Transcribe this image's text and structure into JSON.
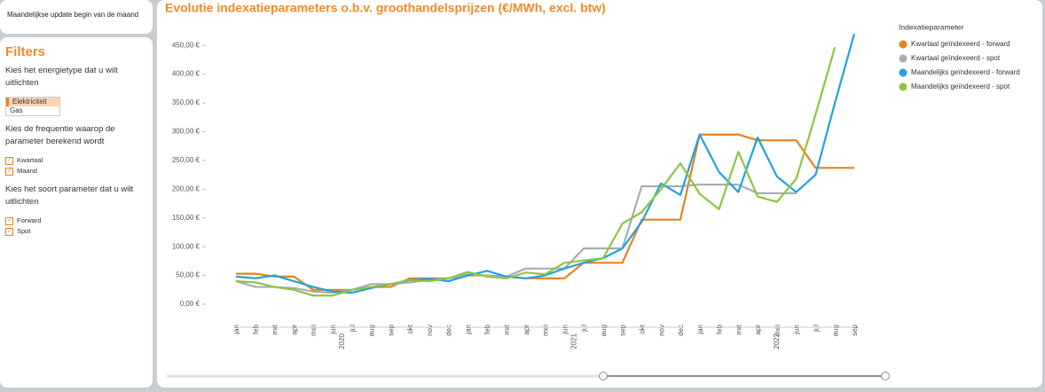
{
  "banner": {
    "text": "Maandelijkse update begin van de maand"
  },
  "filters": {
    "title": "Filters",
    "energy": {
      "question": "Kies het energietype dat u wilt uitlichten",
      "options": [
        "Elektriciteit",
        "Gas"
      ]
    },
    "frequency": {
      "question": "Kies de frequentie waarop de parameter berekend wordt",
      "options": [
        "Kwartaal",
        "Maand"
      ]
    },
    "kind": {
      "question": "Kies het soort parameter dat u wilt uitlichten",
      "options": [
        "Forward",
        "Spot"
      ]
    }
  },
  "chart_data": {
    "type": "line",
    "title": "Evolutie indexatieparameters o.b.v. groothandelsprijzen (€/MWh, excl. btw)",
    "legend_title": "Indexatieparameter",
    "categories": [
      "jan",
      "feb",
      "mrt",
      "apr",
      "mei",
      "jun",
      "jul",
      "aug",
      "sep",
      "okt",
      "nov",
      "dec",
      "jan",
      "feb",
      "mrt",
      "apr",
      "mei",
      "jun",
      "jul",
      "aug",
      "sep",
      "okt",
      "nov",
      "dec",
      "jan",
      "feb",
      "mrt",
      "apr",
      "mei",
      "jun",
      "jul",
      "aug",
      "sep"
    ],
    "years": [
      "2020",
      "2021",
      "2022"
    ],
    "ylim": [
      0,
      475
    ],
    "yticks": [
      {
        "value": 0,
        "label": "0,00 €"
      },
      {
        "value": 50,
        "label": "50,00 €"
      },
      {
        "value": 100,
        "label": "100,00 €"
      },
      {
        "value": 150,
        "label": "150,00 €"
      },
      {
        "value": 200,
        "label": "200,00 €"
      },
      {
        "value": 250,
        "label": "250,00 €"
      },
      {
        "value": 300,
        "label": "300,00 €"
      },
      {
        "value": 350,
        "label": "350,00 €"
      },
      {
        "value": 400,
        "label": "400,00 €"
      },
      {
        "value": 450,
        "label": "450,00 €"
      }
    ],
    "series": [
      {
        "name": "Kwartaal geïndexeerd - forward",
        "color": "#e8801f",
        "values": [
          53,
          53,
          48,
          48,
          25,
          25,
          25,
          30,
          30,
          45,
          45,
          45,
          50,
          50,
          48,
          45,
          45,
          45,
          72,
          72,
          72,
          147,
          147,
          147,
          295,
          295,
          295,
          285,
          285,
          285,
          237,
          237,
          237
        ]
      },
      {
        "name": "Kwartaal geïndexeerd - spot",
        "color": "#a6adb4",
        "values": [
          40,
          30,
          30,
          28,
          22,
          20,
          25,
          35,
          35,
          38,
          42,
          45,
          52,
          50,
          48,
          62,
          62,
          62,
          97,
          97,
          97,
          205,
          205,
          205,
          208,
          208,
          208,
          193,
          193,
          193,
          null,
          null,
          null
        ]
      },
      {
        "name": "Maandelijks geïndexeerd - forward",
        "color": "#1fa2e0",
        "values": [
          48,
          45,
          50,
          40,
          30,
          22,
          20,
          28,
          35,
          42,
          44,
          40,
          50,
          58,
          48,
          45,
          50,
          62,
          72,
          80,
          97,
          143,
          210,
          190,
          295,
          230,
          195,
          290,
          222,
          195,
          225,
          350,
          470
        ]
      },
      {
        "name": "Maandelijks geïndexeerd - spot",
        "color": "#8cc63f",
        "values": [
          40,
          38,
          30,
          25,
          15,
          15,
          25,
          30,
          35,
          42,
          40,
          45,
          56,
          48,
          45,
          55,
          52,
          72,
          76,
          80,
          140,
          160,
          200,
          245,
          192,
          165,
          265,
          187,
          178,
          218,
          330,
          447,
          null
        ]
      }
    ]
  }
}
